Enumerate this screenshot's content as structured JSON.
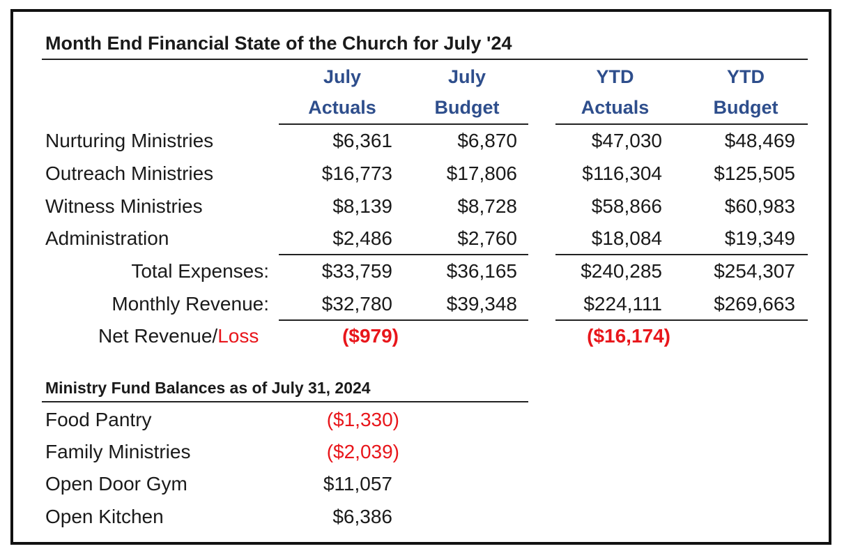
{
  "title": "Month End Financial State of the Church for July '24",
  "headers": {
    "july_actuals": [
      "July",
      "Actuals"
    ],
    "july_budget": [
      "July",
      "Budget"
    ],
    "ytd_actuals": [
      "YTD",
      "Actuals"
    ],
    "ytd_budget": [
      "YTD",
      "Budget"
    ]
  },
  "expense_rows": [
    {
      "label": "Nurturing Ministries",
      "july_actuals": "$6,361",
      "july_budget": "$6,870",
      "ytd_actuals": "$47,030",
      "ytd_budget": "$48,469"
    },
    {
      "label": "Outreach Ministries",
      "july_actuals": "$16,773",
      "july_budget": "$17,806",
      "ytd_actuals": "$116,304",
      "ytd_budget": "$125,505"
    },
    {
      "label": "Witness Ministries",
      "july_actuals": "$8,139",
      "july_budget": "$8,728",
      "ytd_actuals": "$58,866",
      "ytd_budget": "$60,983"
    },
    {
      "label": "Administration",
      "july_actuals": "$2,486",
      "july_budget": "$2,760",
      "ytd_actuals": "$18,084",
      "ytd_budget": "$19,349"
    }
  ],
  "totals": [
    {
      "label": "Total Expenses:",
      "july_actuals": "$33,759",
      "july_budget": "$36,165",
      "ytd_actuals": "$240,285",
      "ytd_budget": "$254,307"
    },
    {
      "label": "Monthly Revenue:",
      "july_actuals": "$32,780",
      "july_budget": "$39,348",
      "ytd_actuals": "$224,111",
      "ytd_budget": "$269,663"
    }
  ],
  "net": {
    "label_prefix": "Net Revenue/",
    "label_loss": "Loss",
    "july_actuals": "($979)",
    "ytd_actuals": "($16,174)"
  },
  "funds": {
    "title": "Ministry Fund Balances as of July 31, 2024",
    "rows": [
      {
        "label": "Food Pantry",
        "value": "($1,330)",
        "negative": true
      },
      {
        "label": "Family Ministries",
        "value": "($2,039)",
        "negative": true
      },
      {
        "label": "Open Door Gym",
        "value": "$11,057",
        "negative": false
      },
      {
        "label": "Open Kitchen",
        "value": "$6,386",
        "negative": false
      }
    ]
  },
  "colors": {
    "header_blue": "#2e4e8c",
    "negative_red": "#e8161b",
    "border": "#111111"
  }
}
